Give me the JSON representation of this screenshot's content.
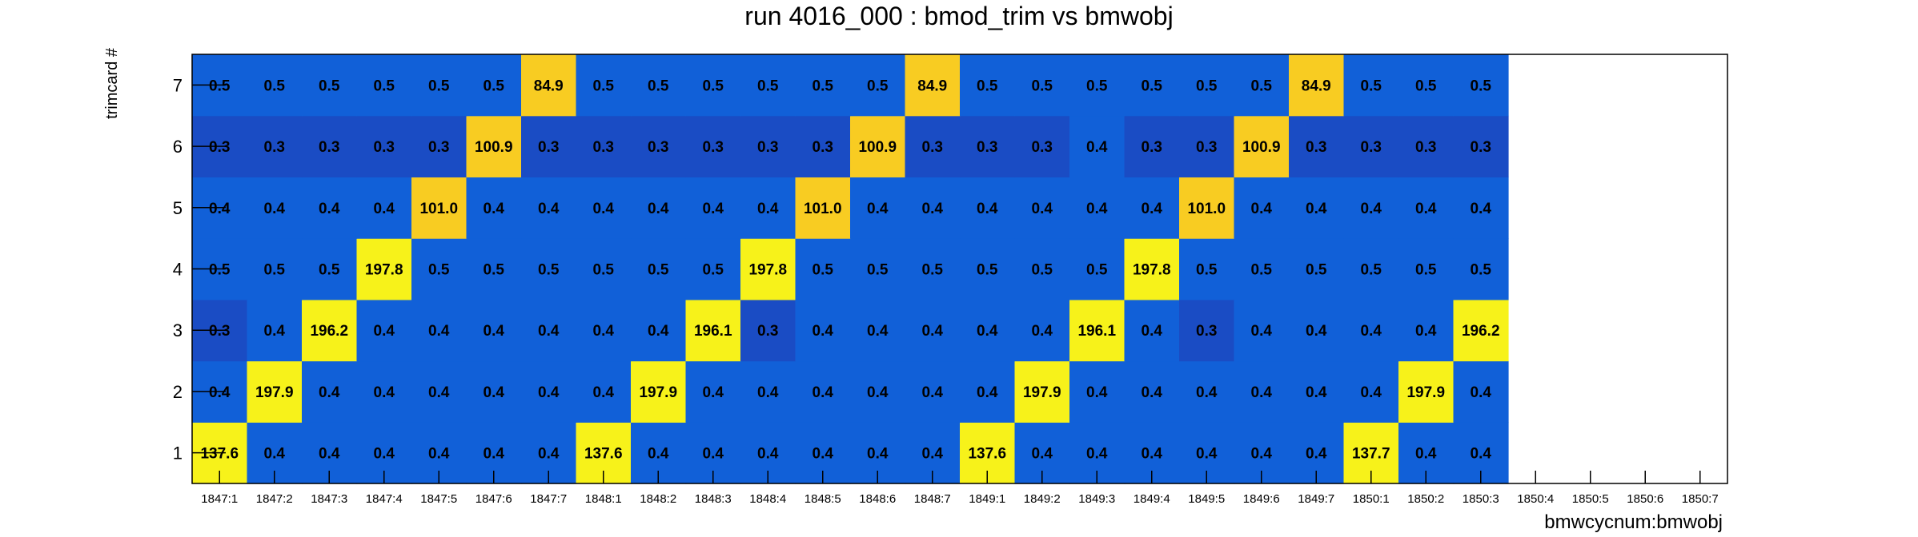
{
  "chart_data": {
    "type": "heatmap",
    "title": "run 4016_000 : bmod_trim vs bmwobj",
    "xlabel": "bmwcycnum:bmwobj",
    "ylabel": "trimcard #",
    "x_categories": [
      "1847:1",
      "1847:2",
      "1847:3",
      "1847:4",
      "1847:5",
      "1847:6",
      "1847:7",
      "1848:1",
      "1848:2",
      "1848:3",
      "1848:4",
      "1848:5",
      "1848:6",
      "1848:7",
      "1849:1",
      "1849:2",
      "1849:3",
      "1849:4",
      "1849:5",
      "1849:6",
      "1849:7",
      "1850:1",
      "1850:2",
      "1850:3",
      "1850:4",
      "1850:5",
      "1850:6",
      "1850:7"
    ],
    "y_categories": [
      "1",
      "2",
      "3",
      "4",
      "5",
      "6",
      "7"
    ],
    "values": [
      [
        137.6,
        0.4,
        0.4,
        0.4,
        0.4,
        0.4,
        0.4,
        137.6,
        0.4,
        0.4,
        0.4,
        0.4,
        0.4,
        0.4,
        137.6,
        0.4,
        0.4,
        0.4,
        0.4,
        0.4,
        0.4,
        137.7,
        0.4,
        0.4,
        null,
        null,
        null,
        null
      ],
      [
        0.4,
        197.9,
        0.4,
        0.4,
        0.4,
        0.4,
        0.4,
        0.4,
        197.9,
        0.4,
        0.4,
        0.4,
        0.4,
        0.4,
        0.4,
        197.9,
        0.4,
        0.4,
        0.4,
        0.4,
        0.4,
        0.4,
        197.9,
        0.4,
        null,
        null,
        null,
        null
      ],
      [
        0.3,
        0.4,
        196.2,
        0.4,
        0.4,
        0.4,
        0.4,
        0.4,
        0.4,
        196.1,
        0.3,
        0.4,
        0.4,
        0.4,
        0.4,
        0.4,
        196.1,
        0.4,
        0.3,
        0.4,
        0.4,
        0.4,
        0.4,
        196.2,
        null,
        null,
        null,
        null
      ],
      [
        0.5,
        0.5,
        0.5,
        197.8,
        0.5,
        0.5,
        0.5,
        0.5,
        0.5,
        0.5,
        197.8,
        0.5,
        0.5,
        0.5,
        0.5,
        0.5,
        0.5,
        197.8,
        0.5,
        0.5,
        0.5,
        0.5,
        0.5,
        0.5,
        null,
        null,
        null,
        null
      ],
      [
        0.4,
        0.4,
        0.4,
        0.4,
        101.0,
        0.4,
        0.4,
        0.4,
        0.4,
        0.4,
        0.4,
        101.0,
        0.4,
        0.4,
        0.4,
        0.4,
        0.4,
        0.4,
        101.0,
        0.4,
        0.4,
        0.4,
        0.4,
        0.4,
        null,
        null,
        null,
        null
      ],
      [
        0.3,
        0.3,
        0.3,
        0.3,
        0.3,
        100.9,
        0.3,
        0.3,
        0.3,
        0.3,
        0.3,
        0.3,
        100.9,
        0.3,
        0.3,
        0.3,
        0.4,
        0.3,
        0.3,
        100.9,
        0.3,
        0.3,
        0.3,
        0.3,
        null,
        null,
        null,
        null
      ],
      [
        0.5,
        0.5,
        0.5,
        0.5,
        0.5,
        0.5,
        84.9,
        0.5,
        0.5,
        0.5,
        0.5,
        0.5,
        0.5,
        84.9,
        0.5,
        0.5,
        0.5,
        0.5,
        0.5,
        0.5,
        84.9,
        0.5,
        0.5,
        0.5,
        null,
        null,
        null,
        null
      ]
    ],
    "colors": {
      "low_light": "#1160d8",
      "low_dark": "#1a4cc4",
      "high_yellow": "#f7f21a",
      "mid_orange": "#f8cc22"
    },
    "legend": "none",
    "grid": false
  }
}
